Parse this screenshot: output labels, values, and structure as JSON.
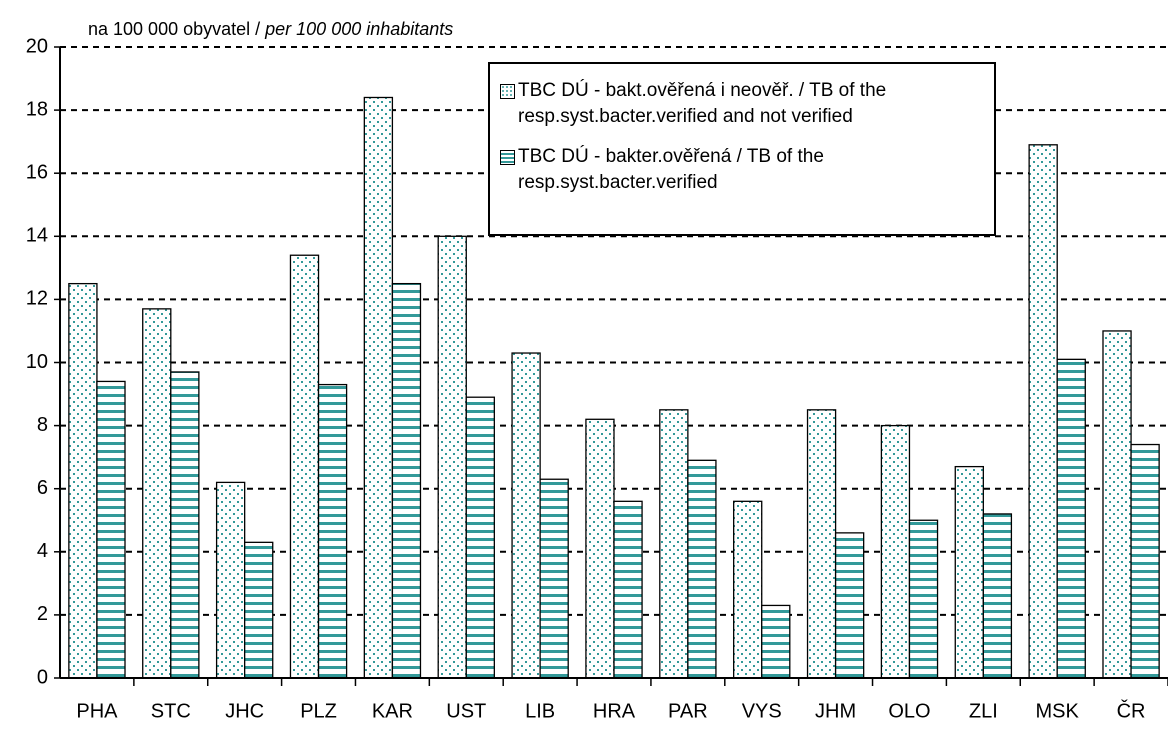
{
  "chart_data": {
    "type": "bar",
    "y_label": "na 100 000 obyvatel / ",
    "y_label_en": "per 100 000 inhabitants",
    "categories": [
      "PHA",
      "STC",
      "JHC",
      "PLZ",
      "KAR",
      "UST",
      "LIB",
      "HRA",
      "PAR",
      "VYS",
      "JHM",
      "OLO",
      "ZLI",
      "MSK",
      "ČR"
    ],
    "series": [
      {
        "name": "TBC DÚ -  bakt.ověřená i neověř. / TB of the resp.syst.bacter.verified and not verified",
        "color": "#339999",
        "pattern": "dots",
        "values": [
          12.5,
          11.7,
          6.2,
          13.4,
          18.4,
          14.0,
          10.3,
          8.2,
          8.5,
          5.6,
          8.5,
          8.0,
          6.7,
          16.9,
          11.0
        ]
      },
      {
        "name": "TBC DÚ - bakter.ověřená / TB of the resp.syst.bacter.verified",
        "color": "#339999",
        "pattern": "stripes",
        "values": [
          9.4,
          9.7,
          4.3,
          9.3,
          12.5,
          8.9,
          6.3,
          5.6,
          6.9,
          2.3,
          4.6,
          5.0,
          5.2,
          10.1,
          7.4
        ]
      }
    ],
    "ylim": [
      0,
      20
    ],
    "yticks": [
      0,
      2,
      4,
      6,
      8,
      10,
      12,
      14,
      16,
      18,
      20
    ],
    "grid": true
  }
}
